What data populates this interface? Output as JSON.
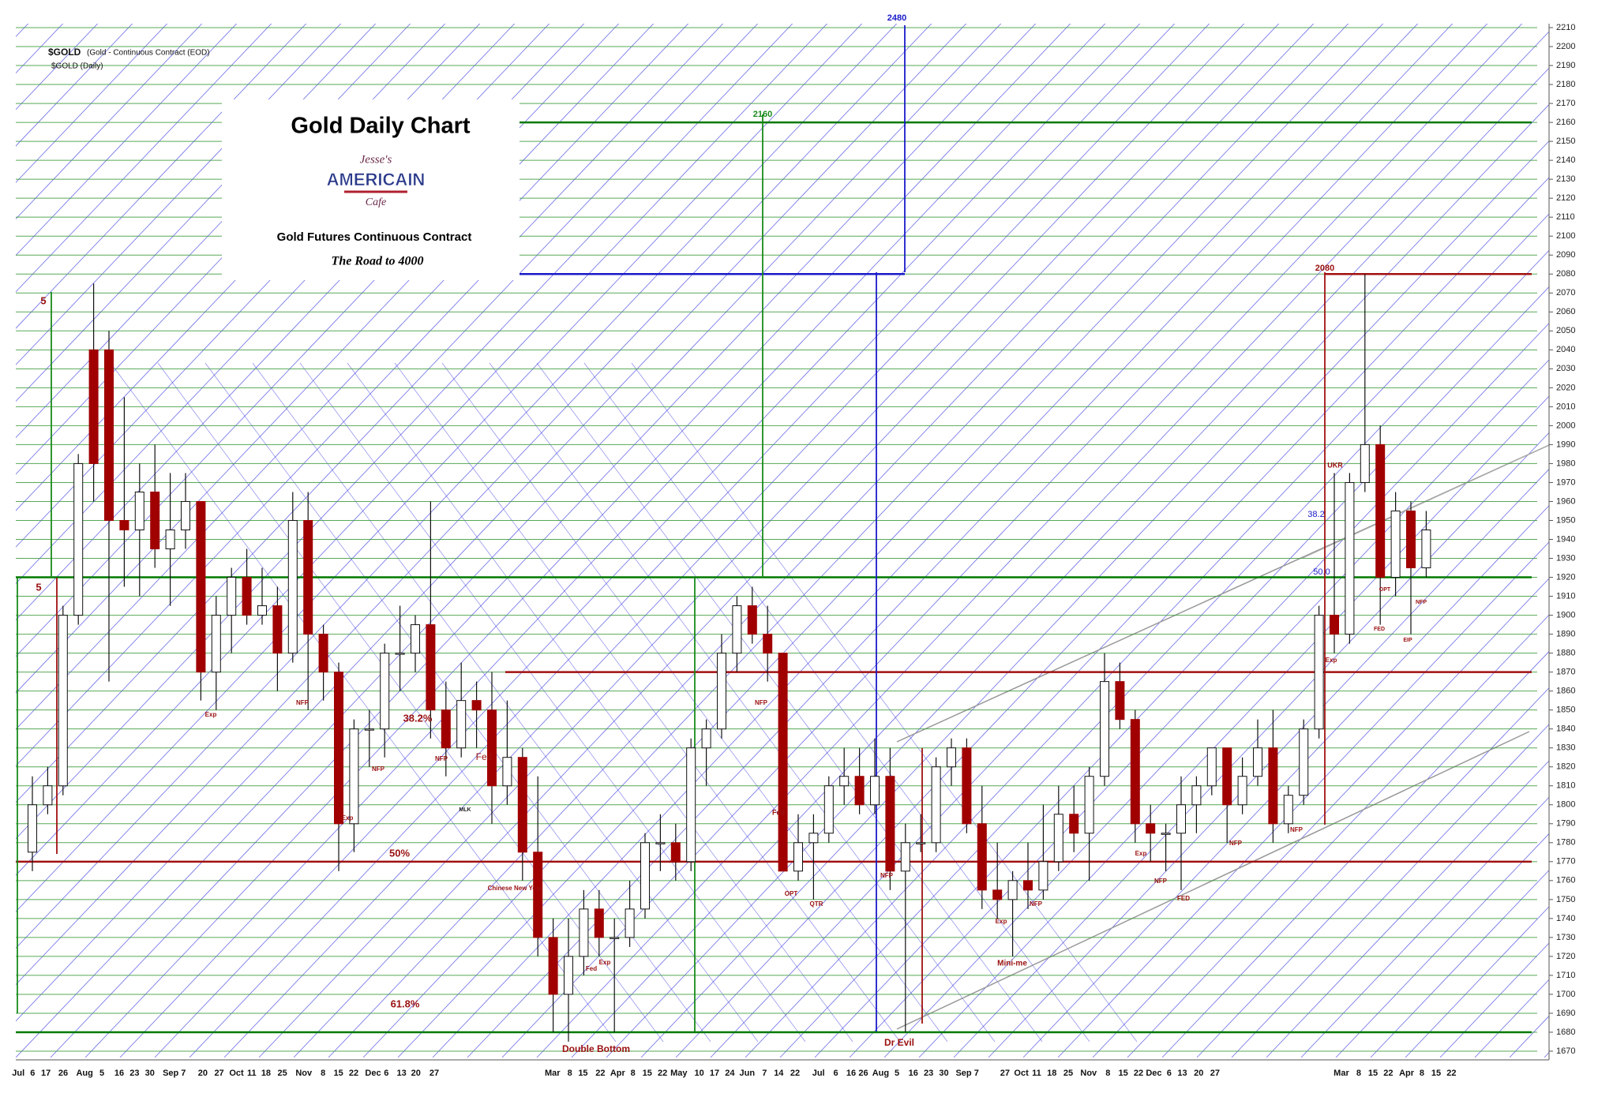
{
  "chart_data": {
    "type": "candlestick",
    "title": "Gold Daily Chart",
    "symbol": "$GOLD",
    "symbol_desc": "(Gold - Continuous Contract (EOD)",
    "symbol_period": "$GOLD (Daily)",
    "logo": [
      "Jesse's",
      "AMERICAIN",
      "Cafe"
    ],
    "subtitle": "Gold Futures Continuous Contract",
    "tagline": "The Road to 4000",
    "up_color": "#ffffff",
    "down_color": "#a00000",
    "grid": true,
    "grid_color": "#3a9a3a",
    "ylim": [
      1670,
      2210
    ],
    "yticks": [
      1670,
      1680,
      1690,
      1700,
      1710,
      1720,
      1730,
      1740,
      1750,
      1760,
      1770,
      1780,
      1790,
      1800,
      1810,
      1820,
      1830,
      1840,
      1850,
      1860,
      1870,
      1880,
      1890,
      1900,
      1910,
      1920,
      1930,
      1940,
      1950,
      1960,
      1970,
      1980,
      1990,
      2000,
      2010,
      2020,
      2030,
      2040,
      2050,
      2060,
      2070,
      2080,
      2090,
      2100,
      2110,
      2120,
      2130,
      2140,
      2150,
      2160,
      2170,
      2180,
      2190,
      2200,
      2210
    ],
    "levels": [
      {
        "value": 2160,
        "color": "#007a00"
      },
      {
        "value": 1920,
        "color": "#007a00"
      },
      {
        "value": 1680,
        "color": "#007a00"
      },
      {
        "value": 2080,
        "color": "#1a1ac8"
      },
      {
        "value": 2080,
        "color": "#a01010"
      },
      {
        "value": 1870,
        "color": "#a01010"
      },
      {
        "value": 1770,
        "color": "#a01010"
      }
    ],
    "x_labels": [
      "Jul",
      "6",
      "17",
      "26",
      "Aug",
      "5",
      "16",
      "23",
      "30",
      "Sep 7",
      "20",
      "27",
      "Oct",
      "11",
      "18",
      "25",
      "Nov",
      "8",
      "15",
      "22",
      "Dec",
      "6",
      "13",
      "20",
      "27",
      "Mar",
      "8",
      "15",
      "22",
      "Apr",
      "8",
      "15",
      "22",
      "May",
      "10",
      "17",
      "24",
      "Jun",
      "7",
      "14",
      "22",
      "Jul",
      "6",
      "16",
      "26",
      "Aug",
      "5",
      "16",
      "23",
      "30",
      "Sep 7",
      "27",
      "Oct",
      "11",
      "18",
      "25",
      "Nov",
      "8",
      "15",
      "22",
      "Dec",
      "6",
      "13",
      "20",
      "27",
      "Mar",
      "8",
      "15",
      "22",
      "Apr",
      "8",
      "15",
      "22"
    ],
    "annotations": [
      "2480",
      "2160",
      "2080",
      "Double Bottom",
      "Dr Evil",
      "38.2%",
      "50%",
      "61.8%",
      "Mini-me",
      "UKR",
      "38.2",
      "50.0",
      "5",
      "5",
      "Fed",
      "Exp",
      "NFP",
      "Exp",
      "NFP",
      "NFP",
      "MLK",
      "Chinese New Year",
      "Fed",
      "Exp",
      "NFP",
      "Fed",
      "OPT",
      "QTR",
      "NFP",
      "Exp",
      "NFP",
      "Exp",
      "NFP",
      "FED",
      "NFP",
      "NFP",
      "Exp",
      "FED",
      "EIP",
      "OPT",
      "NFP"
    ],
    "candles": [
      [
        1775,
        1815,
        1765,
        1800
      ],
      [
        1800,
        1820,
        1795,
        1810
      ],
      [
        1810,
        1905,
        1805,
        1900
      ],
      [
        1900,
        1985,
        1895,
        1980
      ],
      [
        2040,
        2075,
        1960,
        1980
      ],
      [
        2040,
        2050,
        1865,
        1950
      ],
      [
        1950,
        2015,
        1915,
        1945
      ],
      [
        1945,
        1980,
        1910,
        1965
      ],
      [
        1965,
        1990,
        1925,
        1935
      ],
      [
        1935,
        1975,
        1905,
        1945
      ],
      [
        1945,
        1975,
        1935,
        1960
      ],
      [
        1960,
        1960,
        1855,
        1870
      ],
      [
        1870,
        1910,
        1850,
        1900
      ],
      [
        1900,
        1925,
        1880,
        1920
      ],
      [
        1920,
        1935,
        1895,
        1900
      ],
      [
        1900,
        1925,
        1895,
        1905
      ],
      [
        1905,
        1915,
        1860,
        1880
      ],
      [
        1880,
        1965,
        1875,
        1950
      ],
      [
        1950,
        1965,
        1850,
        1890
      ],
      [
        1890,
        1895,
        1855,
        1870
      ],
      [
        1870,
        1875,
        1765,
        1790
      ],
      [
        1790,
        1845,
        1775,
        1840
      ],
      [
        1840,
        1850,
        1820,
        1840
      ],
      [
        1840,
        1885,
        1825,
        1880
      ],
      [
        1880,
        1905,
        1860,
        1880
      ],
      [
        1880,
        1900,
        1870,
        1895
      ],
      [
        1895,
        1960,
        1835,
        1850
      ],
      [
        1850,
        1865,
        1815,
        1830
      ],
      [
        1830,
        1875,
        1825,
        1855
      ],
      [
        1855,
        1865,
        1830,
        1850
      ],
      [
        1850,
        1870,
        1790,
        1810
      ],
      [
        1810,
        1855,
        1800,
        1825
      ],
      [
        1825,
        1830,
        1760,
        1775
      ],
      [
        1775,
        1815,
        1720,
        1730
      ],
      [
        1730,
        1740,
        1680,
        1700
      ],
      [
        1700,
        1740,
        1675,
        1720
      ],
      [
        1720,
        1755,
        1710,
        1745
      ],
      [
        1745,
        1755,
        1720,
        1730
      ],
      [
        1730,
        1740,
        1680,
        1730
      ],
      [
        1730,
        1760,
        1725,
        1745
      ],
      [
        1745,
        1785,
        1740,
        1780
      ],
      [
        1780,
        1795,
        1765,
        1780
      ],
      [
        1780,
        1790,
        1760,
        1770
      ],
      [
        1770,
        1835,
        1765,
        1830
      ],
      [
        1830,
        1845,
        1810,
        1840
      ],
      [
        1840,
        1890,
        1835,
        1880
      ],
      [
        1880,
        1910,
        1870,
        1905
      ],
      [
        1905,
        1915,
        1885,
        1890
      ],
      [
        1890,
        1905,
        1865,
        1880
      ],
      [
        1880,
        1880,
        1765,
        1765
      ],
      [
        1765,
        1795,
        1760,
        1780
      ],
      [
        1780,
        1795,
        1750,
        1785
      ],
      [
        1785,
        1815,
        1780,
        1810
      ],
      [
        1810,
        1830,
        1800,
        1815
      ],
      [
        1815,
        1830,
        1795,
        1800
      ],
      [
        1800,
        1835,
        1795,
        1815
      ],
      [
        1815,
        1830,
        1755,
        1765
      ],
      [
        1765,
        1790,
        1680,
        1780
      ],
      [
        1780,
        1795,
        1775,
        1780
      ],
      [
        1780,
        1825,
        1775,
        1820
      ],
      [
        1820,
        1835,
        1810,
        1830
      ],
      [
        1830,
        1835,
        1785,
        1790
      ],
      [
        1790,
        1810,
        1745,
        1755
      ],
      [
        1755,
        1780,
        1740,
        1750
      ],
      [
        1750,
        1765,
        1720,
        1760
      ],
      [
        1760,
        1780,
        1745,
        1755
      ],
      [
        1755,
        1800,
        1750,
        1770
      ],
      [
        1770,
        1810,
        1765,
        1795
      ],
      [
        1795,
        1810,
        1775,
        1785
      ],
      [
        1785,
        1820,
        1760,
        1815
      ],
      [
        1815,
        1880,
        1810,
        1865
      ],
      [
        1865,
        1875,
        1840,
        1845
      ],
      [
        1845,
        1850,
        1780,
        1790
      ],
      [
        1790,
        1800,
        1770,
        1785
      ],
      [
        1785,
        1790,
        1765,
        1785
      ],
      [
        1785,
        1815,
        1755,
        1800
      ],
      [
        1800,
        1815,
        1785,
        1810
      ],
      [
        1810,
        1830,
        1805,
        1830
      ],
      [
        1830,
        1830,
        1780,
        1800
      ],
      [
        1800,
        1825,
        1795,
        1815
      ],
      [
        1815,
        1845,
        1810,
        1830
      ],
      [
        1830,
        1850,
        1780,
        1790
      ],
      [
        1790,
        1810,
        1785,
        1805
      ],
      [
        1805,
        1845,
        1800,
        1840
      ],
      [
        1840,
        1905,
        1835,
        1900
      ],
      [
        1900,
        1975,
        1880,
        1890
      ],
      [
        1890,
        1975,
        1885,
        1970
      ],
      [
        1970,
        2080,
        1965,
        1990
      ],
      [
        1990,
        2000,
        1895,
        1920
      ],
      [
        1920,
        1965,
        1910,
        1955
      ],
      [
        1955,
        1960,
        1890,
        1925
      ],
      [
        1925,
        1955,
        1920,
        1945
      ]
    ]
  }
}
